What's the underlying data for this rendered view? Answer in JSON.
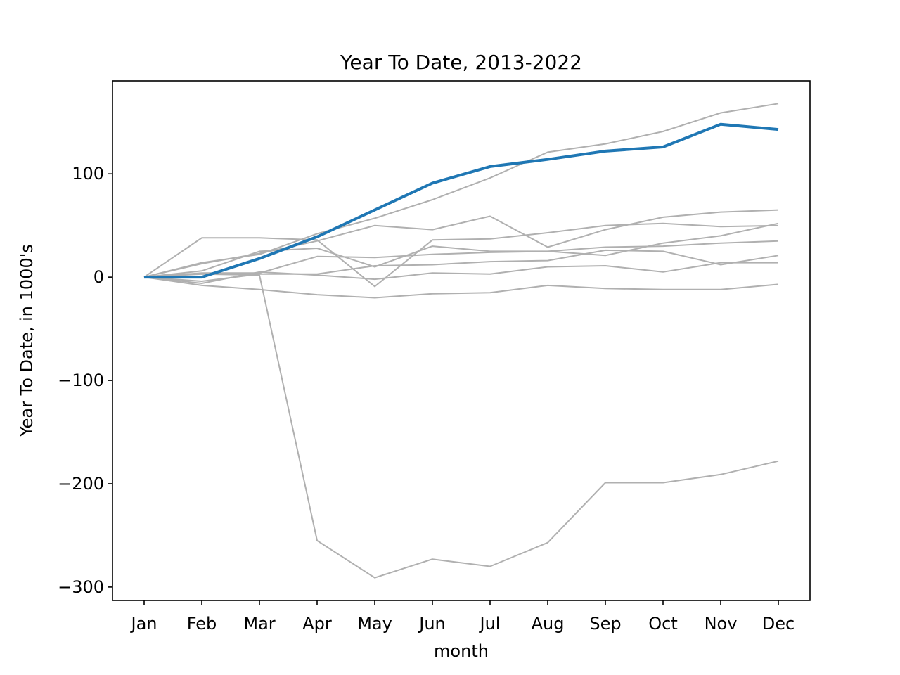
{
  "chart_data": {
    "type": "line",
    "title": "Year To Date, 2013-2022",
    "xlabel": "month",
    "ylabel": "Year To Date, in 1000's",
    "categories": [
      "Jan",
      "Feb",
      "Mar",
      "Apr",
      "May",
      "Jun",
      "Jul",
      "Aug",
      "Sep",
      "Oct",
      "Nov",
      "Dec"
    ],
    "ylim": [
      -313,
      190
    ],
    "yticks": [
      -300,
      -200,
      -100,
      0,
      100
    ],
    "ytick_labels": [
      "−300",
      "−200",
      "−100",
      "0",
      "100"
    ],
    "grid": false,
    "legend": "none",
    "colors": {
      "highlight": "#1f77b4",
      "background_series": "#b0b0b0"
    },
    "series": [
      {
        "values": [
          0,
          13,
          23,
          35,
          50,
          46,
          59,
          29,
          46,
          58,
          63,
          65
        ],
        "highlight": false
      },
      {
        "values": [
          0,
          14,
          22,
          42,
          57,
          75,
          96,
          121,
          129,
          141,
          159,
          168
        ],
        "highlight": false
      },
      {
        "values": [
          0,
          38,
          38,
          36,
          -9,
          36,
          37,
          43,
          50,
          52,
          49,
          50
        ],
        "highlight": false
      },
      {
        "values": [
          0,
          6,
          25,
          28,
          10,
          30,
          25,
          25,
          21,
          33,
          40,
          52
        ],
        "highlight": false
      },
      {
        "values": [
          0,
          4,
          4,
          20,
          19,
          22,
          24,
          25,
          29,
          30,
          33,
          35
        ],
        "highlight": false
      },
      {
        "values": [
          0,
          -4,
          3,
          3,
          11,
          12,
          15,
          16,
          26,
          25,
          12,
          21
        ],
        "highlight": false
      },
      {
        "values": [
          0,
          -6,
          5,
          2,
          -2,
          4,
          3,
          10,
          11,
          5,
          14,
          14
        ],
        "highlight": false
      },
      {
        "values": [
          0,
          -8,
          -12,
          -17,
          -20,
          -16,
          -15,
          -8,
          -11,
          -12,
          -12,
          -7
        ],
        "highlight": false
      },
      {
        "values": [
          0,
          3,
          2,
          -255,
          -291,
          -273,
          -280,
          -257,
          -199,
          -199,
          -191,
          -178
        ],
        "highlight": false
      },
      {
        "values": [
          0,
          0,
          18,
          39,
          65,
          91,
          107,
          114,
          122,
          126,
          148,
          143
        ],
        "highlight": true
      }
    ]
  }
}
